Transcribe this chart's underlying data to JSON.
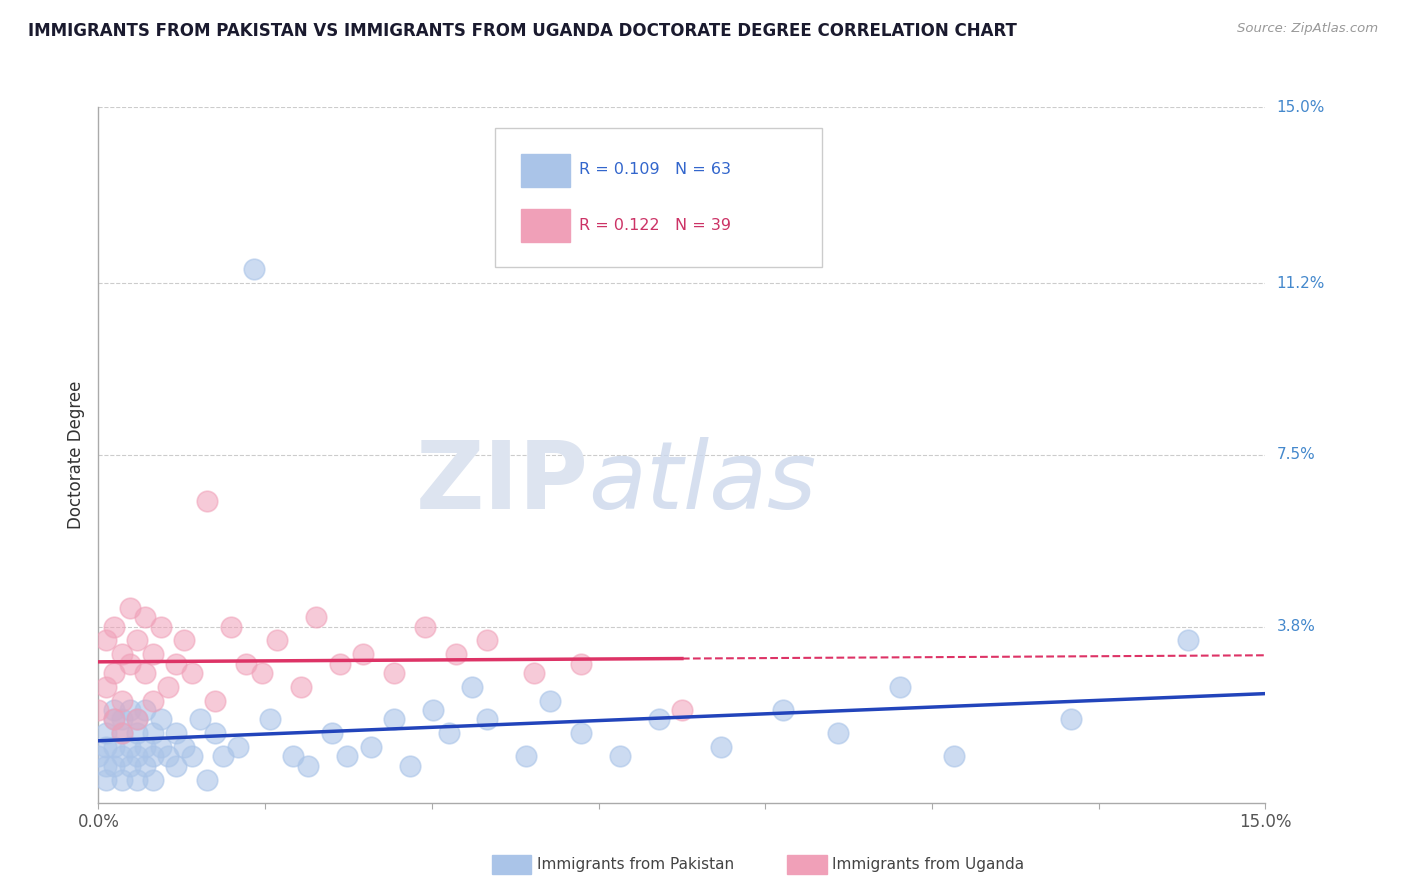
{
  "title": "IMMIGRANTS FROM PAKISTAN VS IMMIGRANTS FROM UGANDA DOCTORATE DEGREE CORRELATION CHART",
  "source": "Source: ZipAtlas.com",
  "ylabel": "Doctorate Degree",
  "legend_label1": "Immigrants from Pakistan",
  "legend_label2": "Immigrants from Uganda",
  "r1": 0.109,
  "n1": 63,
  "r2": 0.122,
  "n2": 39,
  "color1": "#aac4e8",
  "color2": "#f0a0b8",
  "trendline1_color": "#2244bb",
  "trendline2_color": "#dd3366",
  "xlim": [
    0.0,
    0.15
  ],
  "ylim": [
    0.0,
    0.15
  ],
  "ytick_positions": [
    0.038,
    0.075,
    0.112,
    0.15
  ],
  "ytick_labels": [
    "3.8%",
    "7.5%",
    "11.2%",
    "15.0%"
  ],
  "background_color": "#ffffff",
  "grid_color": "#cccccc",
  "pakistan_x": [
    0.0,
    0.001,
    0.001,
    0.001,
    0.001,
    0.002,
    0.002,
    0.002,
    0.002,
    0.003,
    0.003,
    0.003,
    0.003,
    0.004,
    0.004,
    0.004,
    0.005,
    0.005,
    0.005,
    0.005,
    0.006,
    0.006,
    0.006,
    0.007,
    0.007,
    0.007,
    0.008,
    0.008,
    0.009,
    0.01,
    0.01,
    0.011,
    0.012,
    0.013,
    0.014,
    0.015,
    0.016,
    0.018,
    0.02,
    0.022,
    0.025,
    0.027,
    0.03,
    0.032,
    0.035,
    0.038,
    0.04,
    0.043,
    0.045,
    0.048,
    0.05,
    0.055,
    0.058,
    0.062,
    0.067,
    0.072,
    0.08,
    0.088,
    0.095,
    0.103,
    0.11,
    0.125,
    0.14
  ],
  "pakistan_y": [
    0.01,
    0.012,
    0.008,
    0.015,
    0.005,
    0.018,
    0.012,
    0.008,
    0.02,
    0.01,
    0.015,
    0.005,
    0.018,
    0.012,
    0.008,
    0.02,
    0.01,
    0.015,
    0.005,
    0.018,
    0.012,
    0.008,
    0.02,
    0.01,
    0.015,
    0.005,
    0.012,
    0.018,
    0.01,
    0.015,
    0.008,
    0.012,
    0.01,
    0.018,
    0.005,
    0.015,
    0.01,
    0.012,
    0.115,
    0.018,
    0.01,
    0.008,
    0.015,
    0.01,
    0.012,
    0.018,
    0.008,
    0.02,
    0.015,
    0.025,
    0.018,
    0.01,
    0.022,
    0.015,
    0.01,
    0.018,
    0.012,
    0.02,
    0.015,
    0.025,
    0.01,
    0.018,
    0.035
  ],
  "uganda_x": [
    0.0,
    0.001,
    0.001,
    0.002,
    0.002,
    0.002,
    0.003,
    0.003,
    0.003,
    0.004,
    0.004,
    0.005,
    0.005,
    0.006,
    0.006,
    0.007,
    0.007,
    0.008,
    0.009,
    0.01,
    0.011,
    0.012,
    0.014,
    0.015,
    0.017,
    0.019,
    0.021,
    0.023,
    0.026,
    0.028,
    0.031,
    0.034,
    0.038,
    0.042,
    0.046,
    0.05,
    0.056,
    0.062,
    0.075
  ],
  "uganda_y": [
    0.02,
    0.035,
    0.025,
    0.038,
    0.028,
    0.018,
    0.032,
    0.022,
    0.015,
    0.03,
    0.042,
    0.035,
    0.018,
    0.028,
    0.04,
    0.032,
    0.022,
    0.038,
    0.025,
    0.03,
    0.035,
    0.028,
    0.065,
    0.022,
    0.038,
    0.03,
    0.028,
    0.035,
    0.025,
    0.04,
    0.03,
    0.032,
    0.028,
    0.038,
    0.032,
    0.035,
    0.028,
    0.03,
    0.02
  ]
}
